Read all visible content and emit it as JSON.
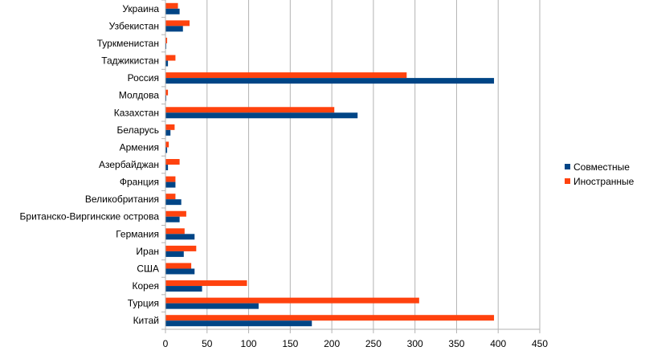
{
  "chart_data": {
    "type": "bar",
    "orientation": "horizontal",
    "title": "",
    "xlabel": "",
    "ylabel": "",
    "xlim": [
      0,
      450
    ],
    "xticks": [
      0,
      50,
      100,
      150,
      200,
      250,
      300,
      350,
      400,
      450
    ],
    "grid": true,
    "legend_position": "right",
    "categories": [
      "Украина",
      "Узбекистан",
      "Туркменистан",
      "Таджикистан",
      "Россия",
      "Молдова",
      "Казахстан",
      "Беларусь",
      "Армения",
      "Азербайджан",
      "Франция",
      "Великобритания",
      "Британско-Виргинские острова",
      "Германия",
      "Иран",
      "США",
      "Корея",
      "Турция",
      "Китай"
    ],
    "series": [
      {
        "name": "Совместные",
        "color": "#004586",
        "values": [
          17,
          21,
          1,
          3,
          395,
          1,
          231,
          6,
          2,
          3,
          12,
          19,
          17,
          35,
          22,
          35,
          44,
          112,
          176
        ]
      },
      {
        "name": "Иностранные",
        "color": "#ff420e",
        "values": [
          15,
          29,
          2,
          12,
          290,
          3,
          203,
          11,
          4,
          17,
          12,
          12,
          25,
          23,
          37,
          31,
          98,
          305,
          395
        ]
      }
    ]
  }
}
